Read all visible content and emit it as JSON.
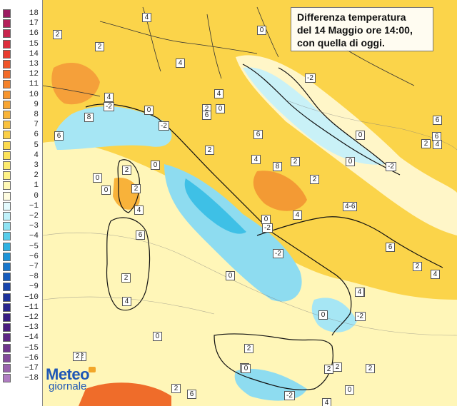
{
  "title": {
    "line1": "Differenza temperatura",
    "line2": "del 14 Maggio ore 14:00,",
    "line3": "con quella di oggi."
  },
  "logo": {
    "meteo": "Meteo",
    "giornale": "giornale"
  },
  "legend": [
    {
      "label": "18",
      "color": "#9b1c62"
    },
    {
      "label": "17",
      "color": "#b3205a"
    },
    {
      "label": "16",
      "color": "#c9254e"
    },
    {
      "label": "15",
      "color": "#dd2d3c"
    },
    {
      "label": "14",
      "color": "#e83b2f"
    },
    {
      "label": "13",
      "color": "#ef5429"
    },
    {
      "label": "12",
      "color": "#f26b2a"
    },
    {
      "label": "11",
      "color": "#f5822b"
    },
    {
      "label": "10",
      "color": "#f7952e"
    },
    {
      "label": "9",
      "color": "#f8a531"
    },
    {
      "label": "8",
      "color": "#f9b437"
    },
    {
      "label": "7",
      "color": "#fac23e"
    },
    {
      "label": "6",
      "color": "#fbcf45"
    },
    {
      "label": "5",
      "color": "#fcda4e"
    },
    {
      "label": "4",
      "color": "#fde35a"
    },
    {
      "label": "3",
      "color": "#fdeb6e"
    },
    {
      "label": "2",
      "color": "#fef287"
    },
    {
      "label": "1",
      "color": "#fff8b5"
    },
    {
      "label": "0",
      "color": "#fffce0"
    },
    {
      "label": "−1",
      "color": "#e4fbff"
    },
    {
      "label": "−2",
      "color": "#c1f2fb"
    },
    {
      "label": "−3",
      "color": "#8fe3f4"
    },
    {
      "label": "−4",
      "color": "#58cdeb"
    },
    {
      "label": "−5",
      "color": "#2fb2e2"
    },
    {
      "label": "−6",
      "color": "#1d94d8"
    },
    {
      "label": "−7",
      "color": "#1877cc"
    },
    {
      "label": "−8",
      "color": "#165cbd"
    },
    {
      "label": "−9",
      "color": "#1745ad"
    },
    {
      "label": "−10",
      "color": "#1d329c"
    },
    {
      "label": "−11",
      "color": "#28258d"
    },
    {
      "label": "−12",
      "color": "#371d83"
    },
    {
      "label": "−13",
      "color": "#4a1d80"
    },
    {
      "label": "−14",
      "color": "#5d2685"
    },
    {
      "label": "−15",
      "color": "#70358e"
    },
    {
      "label": "−16",
      "color": "#844a9c"
    },
    {
      "label": "−17",
      "color": "#9a62ae"
    },
    {
      "label": "−18",
      "color": "#b07cc2"
    }
  ],
  "map_labels": [
    {
      "text": "2"
    },
    {
      "text": "4"
    },
    {
      "text": "2"
    },
    {
      "text": "0"
    },
    {
      "text": "4"
    },
    {
      "text": "4"
    },
    {
      "text": "4"
    },
    {
      "text": "-2"
    },
    {
      "text": "0"
    },
    {
      "text": "2"
    },
    {
      "text": "0"
    },
    {
      "text": "6"
    },
    {
      "text": "8"
    },
    {
      "text": "-2"
    },
    {
      "text": "6"
    },
    {
      "text": "2"
    },
    {
      "text": "6"
    },
    {
      "text": "4"
    },
    {
      "text": "-2"
    },
    {
      "text": "0"
    },
    {
      "text": "6"
    },
    {
      "text": "2"
    },
    {
      "text": "6"
    },
    {
      "text": "2"
    },
    {
      "text": "4"
    },
    {
      "text": "0"
    },
    {
      "text": "2"
    },
    {
      "text": "0"
    },
    {
      "text": "8"
    },
    {
      "text": "2"
    },
    {
      "text": "0"
    },
    {
      "text": "-2"
    },
    {
      "text": "0"
    },
    {
      "text": "2"
    },
    {
      "text": "4"
    },
    {
      "text": "4-6"
    },
    {
      "text": "4"
    },
    {
      "text": "6"
    },
    {
      "text": "0"
    },
    {
      "text": "-2"
    },
    {
      "text": "-2"
    },
    {
      "text": "6"
    },
    {
      "text": "2"
    },
    {
      "text": "2"
    },
    {
      "text": "0"
    },
    {
      "text": "4"
    },
    {
      "text": "2"
    },
    {
      "text": "2"
    },
    {
      "text": "2"
    },
    {
      "text": "4"
    },
    {
      "text": "0"
    },
    {
      "text": "2"
    },
    {
      "text": "-2"
    },
    {
      "text": "0"
    },
    {
      "text": "2"
    },
    {
      "text": "2"
    },
    {
      "text": "2"
    },
    {
      "text": "0"
    },
    {
      "text": "4"
    },
    {
      "text": "6"
    },
    {
      "text": "0"
    },
    {
      "text": "2"
    },
    {
      "text": "-2"
    },
    {
      "text": "4"
    },
    {
      "text": "0"
    },
    {
      "text": "2"
    },
    {
      "text": "2"
    }
  ]
}
